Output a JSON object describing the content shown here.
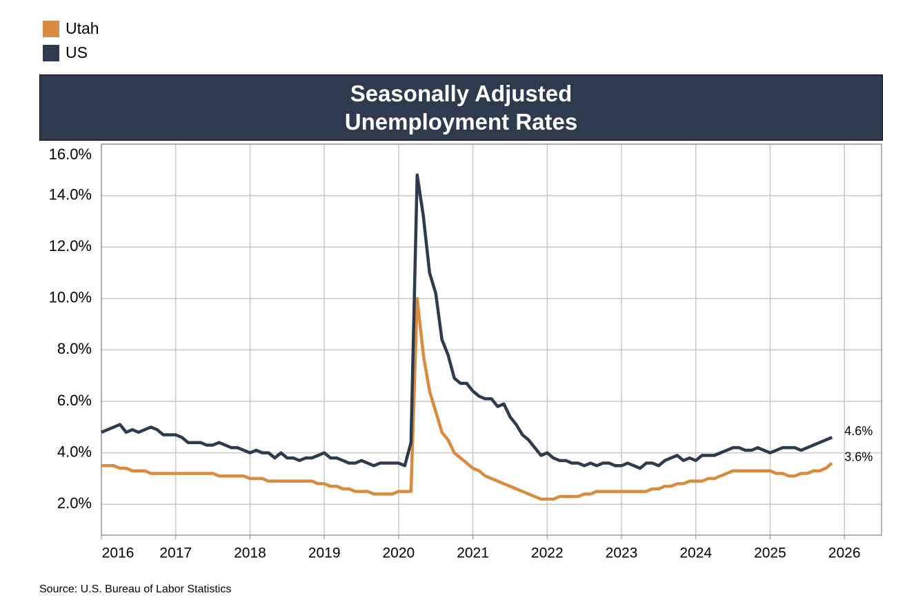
{
  "chart_data": {
    "type": "line",
    "title": "Seasonally Adjusted Unemployment Rates",
    "source": "Source: U.S. Bureau of Labor Statistics",
    "x": [
      "2016-01",
      "2016-02",
      "2016-03",
      "2016-04",
      "2016-05",
      "2016-06",
      "2016-07",
      "2016-08",
      "2016-09",
      "2016-10",
      "2016-11",
      "2016-12",
      "2017-01",
      "2017-02",
      "2017-03",
      "2017-04",
      "2017-05",
      "2017-06",
      "2017-07",
      "2017-08",
      "2017-09",
      "2017-10",
      "2017-11",
      "2017-12",
      "2018-01",
      "2018-02",
      "2018-03",
      "2018-04",
      "2018-05",
      "2018-06",
      "2018-07",
      "2018-08",
      "2018-09",
      "2018-10",
      "2018-11",
      "2018-12",
      "2019-01",
      "2019-02",
      "2019-03",
      "2019-04",
      "2019-05",
      "2019-06",
      "2019-07",
      "2019-08",
      "2019-09",
      "2019-10",
      "2019-11",
      "2019-12",
      "2020-01",
      "2020-02",
      "2020-03",
      "2020-04",
      "2020-05",
      "2020-06",
      "2020-07",
      "2020-08",
      "2020-09",
      "2020-10",
      "2020-11",
      "2020-12",
      "2021-01",
      "2021-02",
      "2021-03",
      "2021-04",
      "2021-05",
      "2021-06",
      "2021-07",
      "2021-08",
      "2021-09",
      "2021-10",
      "2021-11",
      "2021-12",
      "2022-01",
      "2022-02",
      "2022-03",
      "2022-04",
      "2022-05",
      "2022-06",
      "2022-07",
      "2022-08",
      "2022-09",
      "2022-10",
      "2022-11",
      "2022-12",
      "2023-01",
      "2023-02",
      "2023-03",
      "2023-04",
      "2023-05",
      "2023-06",
      "2023-07",
      "2023-08",
      "2023-09",
      "2023-10",
      "2023-11",
      "2023-12",
      "2024-01",
      "2024-02",
      "2024-03",
      "2024-04",
      "2024-05",
      "2024-06",
      "2024-07",
      "2024-08",
      "2024-09",
      "2024-10",
      "2024-11",
      "2024-12",
      "2025-01",
      "2025-02",
      "2025-03",
      "2025-04",
      "2025-05",
      "2025-06",
      "2025-07",
      "2025-08",
      "2025-09",
      "2025-10",
      "2025-11"
    ],
    "series": [
      {
        "name": "Utah",
        "color": "#d98c3f",
        "values": [
          3.5,
          3.5,
          3.5,
          3.4,
          3.4,
          3.3,
          3.3,
          3.3,
          3.2,
          3.2,
          3.2,
          3.2,
          3.2,
          3.2,
          3.2,
          3.2,
          3.2,
          3.2,
          3.2,
          3.1,
          3.1,
          3.1,
          3.1,
          3.1,
          3.0,
          3.0,
          3.0,
          2.9,
          2.9,
          2.9,
          2.9,
          2.9,
          2.9,
          2.9,
          2.9,
          2.8,
          2.8,
          2.7,
          2.7,
          2.6,
          2.6,
          2.5,
          2.5,
          2.5,
          2.4,
          2.4,
          2.4,
          2.4,
          2.5,
          2.5,
          2.5,
          10.0,
          7.8,
          6.4,
          5.6,
          4.8,
          4.5,
          4.0,
          3.8,
          3.6,
          3.4,
          3.3,
          3.1,
          3.0,
          2.9,
          2.8,
          2.7,
          2.6,
          2.5,
          2.4,
          2.3,
          2.2,
          2.2,
          2.2,
          2.3,
          2.3,
          2.3,
          2.3,
          2.4,
          2.4,
          2.5,
          2.5,
          2.5,
          2.5,
          2.5,
          2.5,
          2.5,
          2.5,
          2.5,
          2.6,
          2.6,
          2.7,
          2.7,
          2.8,
          2.8,
          2.9,
          2.9,
          2.9,
          3.0,
          3.0,
          3.1,
          3.2,
          3.3,
          3.3,
          3.3,
          3.3,
          3.3,
          3.3,
          3.3,
          3.2,
          3.2,
          3.1,
          3.1,
          3.2,
          3.2,
          3.3,
          3.3,
          3.4,
          3.6
        ],
        "value_labels": [
          null,
          null,
          null,
          null,
          null,
          null,
          null,
          null,
          null,
          null,
          null,
          null,
          null,
          null,
          null,
          null,
          null,
          null,
          null,
          null,
          null,
          null,
          null,
          null,
          null,
          null,
          null,
          null,
          null,
          null,
          null,
          null,
          null,
          null,
          null,
          null,
          null,
          null,
          null,
          null,
          null,
          null,
          null,
          null,
          null,
          null,
          null,
          null,
          null,
          null,
          null,
          null,
          null,
          null,
          null,
          null,
          null,
          null,
          null,
          null,
          null,
          null,
          null,
          null,
          null,
          null,
          null,
          null,
          null,
          null,
          null,
          null,
          null,
          null,
          null,
          null,
          null,
          null,
          null,
          null,
          null,
          null,
          null,
          null,
          null,
          null,
          null,
          null,
          null,
          null,
          null,
          null,
          null,
          null,
          null,
          null,
          null,
          null,
          null,
          null,
          null,
          null,
          null,
          null,
          null,
          null,
          null,
          null,
          null,
          null,
          null,
          null,
          null,
          null,
          null,
          null,
          null,
          null,
          "3.6%"
        ]
      },
      {
        "name": "US",
        "color": "#2e3b4e",
        "values": [
          4.8,
          4.9,
          5.0,
          5.1,
          4.8,
          4.9,
          4.8,
          4.9,
          5.0,
          4.9,
          4.7,
          4.7,
          4.7,
          4.6,
          4.4,
          4.4,
          4.4,
          4.3,
          4.3,
          4.4,
          4.3,
          4.2,
          4.2,
          4.1,
          4.0,
          4.1,
          4.0,
          4.0,
          3.8,
          4.0,
          3.8,
          3.8,
          3.7,
          3.8,
          3.8,
          3.9,
          4.0,
          3.8,
          3.8,
          3.7,
          3.6,
          3.6,
          3.7,
          3.6,
          3.5,
          3.6,
          3.6,
          3.6,
          3.6,
          3.5,
          4.4,
          14.8,
          13.2,
          11.0,
          10.2,
          8.4,
          7.8,
          6.9,
          6.7,
          6.7,
          6.4,
          6.2,
          6.1,
          6.1,
          5.8,
          5.9,
          5.4,
          5.1,
          4.7,
          4.5,
          4.2,
          3.9,
          4.0,
          3.8,
          3.7,
          3.7,
          3.6,
          3.6,
          3.5,
          3.6,
          3.5,
          3.6,
          3.6,
          3.5,
          3.5,
          3.6,
          3.5,
          3.4,
          3.6,
          3.6,
          3.5,
          3.7,
          3.8,
          3.9,
          3.7,
          3.8,
          3.7,
          3.9,
          3.9,
          3.9,
          4.0,
          4.1,
          4.2,
          4.2,
          4.1,
          4.1,
          4.2,
          4.1,
          4.0,
          4.1,
          4.2,
          4.2,
          4.2,
          4.1,
          4.2,
          4.3,
          4.4,
          4.5,
          4.6
        ],
        "value_labels": [
          null,
          null,
          null,
          null,
          null,
          null,
          null,
          null,
          null,
          null,
          null,
          null,
          null,
          null,
          null,
          null,
          null,
          null,
          null,
          null,
          null,
          null,
          null,
          null,
          null,
          null,
          null,
          null,
          null,
          null,
          null,
          null,
          null,
          null,
          null,
          null,
          null,
          null,
          null,
          null,
          null,
          null,
          null,
          null,
          null,
          null,
          null,
          null,
          null,
          null,
          null,
          null,
          null,
          null,
          null,
          null,
          null,
          null,
          null,
          null,
          null,
          null,
          null,
          null,
          null,
          null,
          null,
          null,
          null,
          null,
          null,
          null,
          null,
          null,
          null,
          null,
          null,
          null,
          null,
          null,
          null,
          null,
          null,
          null,
          null,
          null,
          null,
          null,
          null,
          null,
          null,
          null,
          null,
          null,
          null,
          null,
          null,
          null,
          null,
          null,
          null,
          null,
          null,
          null,
          null,
          null,
          null,
          null,
          null,
          null,
          null,
          null,
          null,
          null,
          null,
          null,
          null,
          null,
          "4.6%"
        ]
      }
    ],
    "xlim": [
      2016,
      2026.5
    ],
    "xticks": [
      2016,
      2017,
      2018,
      2019,
      2020,
      2021,
      2022,
      2023,
      2024,
      2025,
      2026
    ],
    "ylim": [
      0.8,
      16
    ],
    "yticks": [
      {
        "value": 2,
        "label": "2.0%"
      },
      {
        "value": 4,
        "label": "4.0%"
      },
      {
        "value": 6,
        "label": "6.0%"
      },
      {
        "value": 8,
        "label": "8.0%"
      },
      {
        "value": 10,
        "label": "10.0%"
      },
      {
        "value": 12,
        "label": "12.0%"
      },
      {
        "value": 14,
        "label": "14.0%"
      },
      {
        "value": 16,
        "label": "16.0%"
      }
    ],
    "grid": true,
    "legend": "top-left",
    "title_background": "#2e3b4e"
  }
}
